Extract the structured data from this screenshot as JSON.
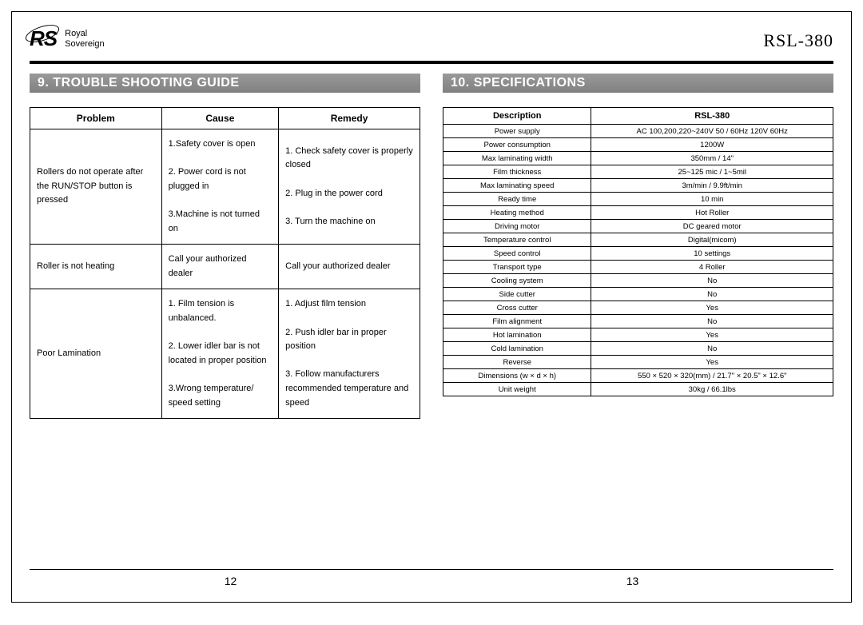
{
  "header": {
    "logo_mark": "RS",
    "logo_line1": "Royal",
    "logo_line2": "Sovereign",
    "model": "RSL-380"
  },
  "left": {
    "section_title": "9. TROUBLE SHOOTING GUIDE",
    "headers": {
      "c1": "Problem",
      "c2": "Cause",
      "c3": "Remedy"
    },
    "rows": [
      {
        "problem": "Rollers do not operate after the RUN/STOP button is pressed",
        "cause": "1.Safety cover is open\n\n2. Power cord is not plugged in\n\n3.Machine is not turned on",
        "remedy": "1. Check safety cover is properly closed\n\n2. Plug in the power cord\n\n3. Turn the machine on"
      },
      {
        "problem": "Roller is not heating",
        "cause": "Call your authorized dealer",
        "remedy": "Call your authorized dealer"
      },
      {
        "problem": "Poor Lamination",
        "cause": "1. Film tension is unbalanced.\n\n2. Lower idler bar is not located in proper position\n\n3.Wrong temperature/ speed setting",
        "remedy": "1. Adjust film tension\n\n2. Push idler bar in proper position\n\n3. Follow manufacturers recommended temperature and speed"
      }
    ],
    "page_num": "12"
  },
  "right": {
    "section_title": "10. SPECIFICATIONS",
    "headers": {
      "c1": "Description",
      "c2": "RSL-380"
    },
    "rows": [
      {
        "d": "Power supply",
        "v": "AC 100,200,220~240V   50 / 60Hz   120V  60Hz"
      },
      {
        "d": "Power consumption",
        "v": "1200W"
      },
      {
        "d": "Max laminating width",
        "v": "350mm / 14\""
      },
      {
        "d": "Film thickness",
        "v": "25~125 mic / 1~5mil"
      },
      {
        "d": "Max laminating speed",
        "v": "3m/min /  9.9ft/min"
      },
      {
        "d": "Ready time",
        "v": "10 min"
      },
      {
        "d": "Heating method",
        "v": "Hot Roller"
      },
      {
        "d": "Driving motor",
        "v": "DC geared motor"
      },
      {
        "d": "Temperature control",
        "v": "Digital(micom)"
      },
      {
        "d": "Speed control",
        "v": "10 settings"
      },
      {
        "d": "Transport type",
        "v": "4 Roller"
      },
      {
        "d": "Cooling system",
        "v": "No"
      },
      {
        "d": "Side cutter",
        "v": "No"
      },
      {
        "d": "Cross cutter",
        "v": "Yes"
      },
      {
        "d": "Film alignment",
        "v": "No"
      },
      {
        "d": "Hot lamination",
        "v": "Yes"
      },
      {
        "d": "Cold lamination",
        "v": "No"
      },
      {
        "d": "Reverse",
        "v": "Yes"
      },
      {
        "d": "Dimensions (w × d × h)",
        "v": "550 × 520 × 320(mm) / 21.7\" × 20.5\" × 12.6\""
      },
      {
        "d": "Unit weight",
        "v": "30kg / 66.1lbs"
      }
    ],
    "page_num": "13"
  },
  "colors": {
    "section_bar_bg": "#8a8a8a",
    "section_bar_text": "#ffffff",
    "border": "#000000",
    "text": "#000000",
    "background": "#ffffff"
  }
}
